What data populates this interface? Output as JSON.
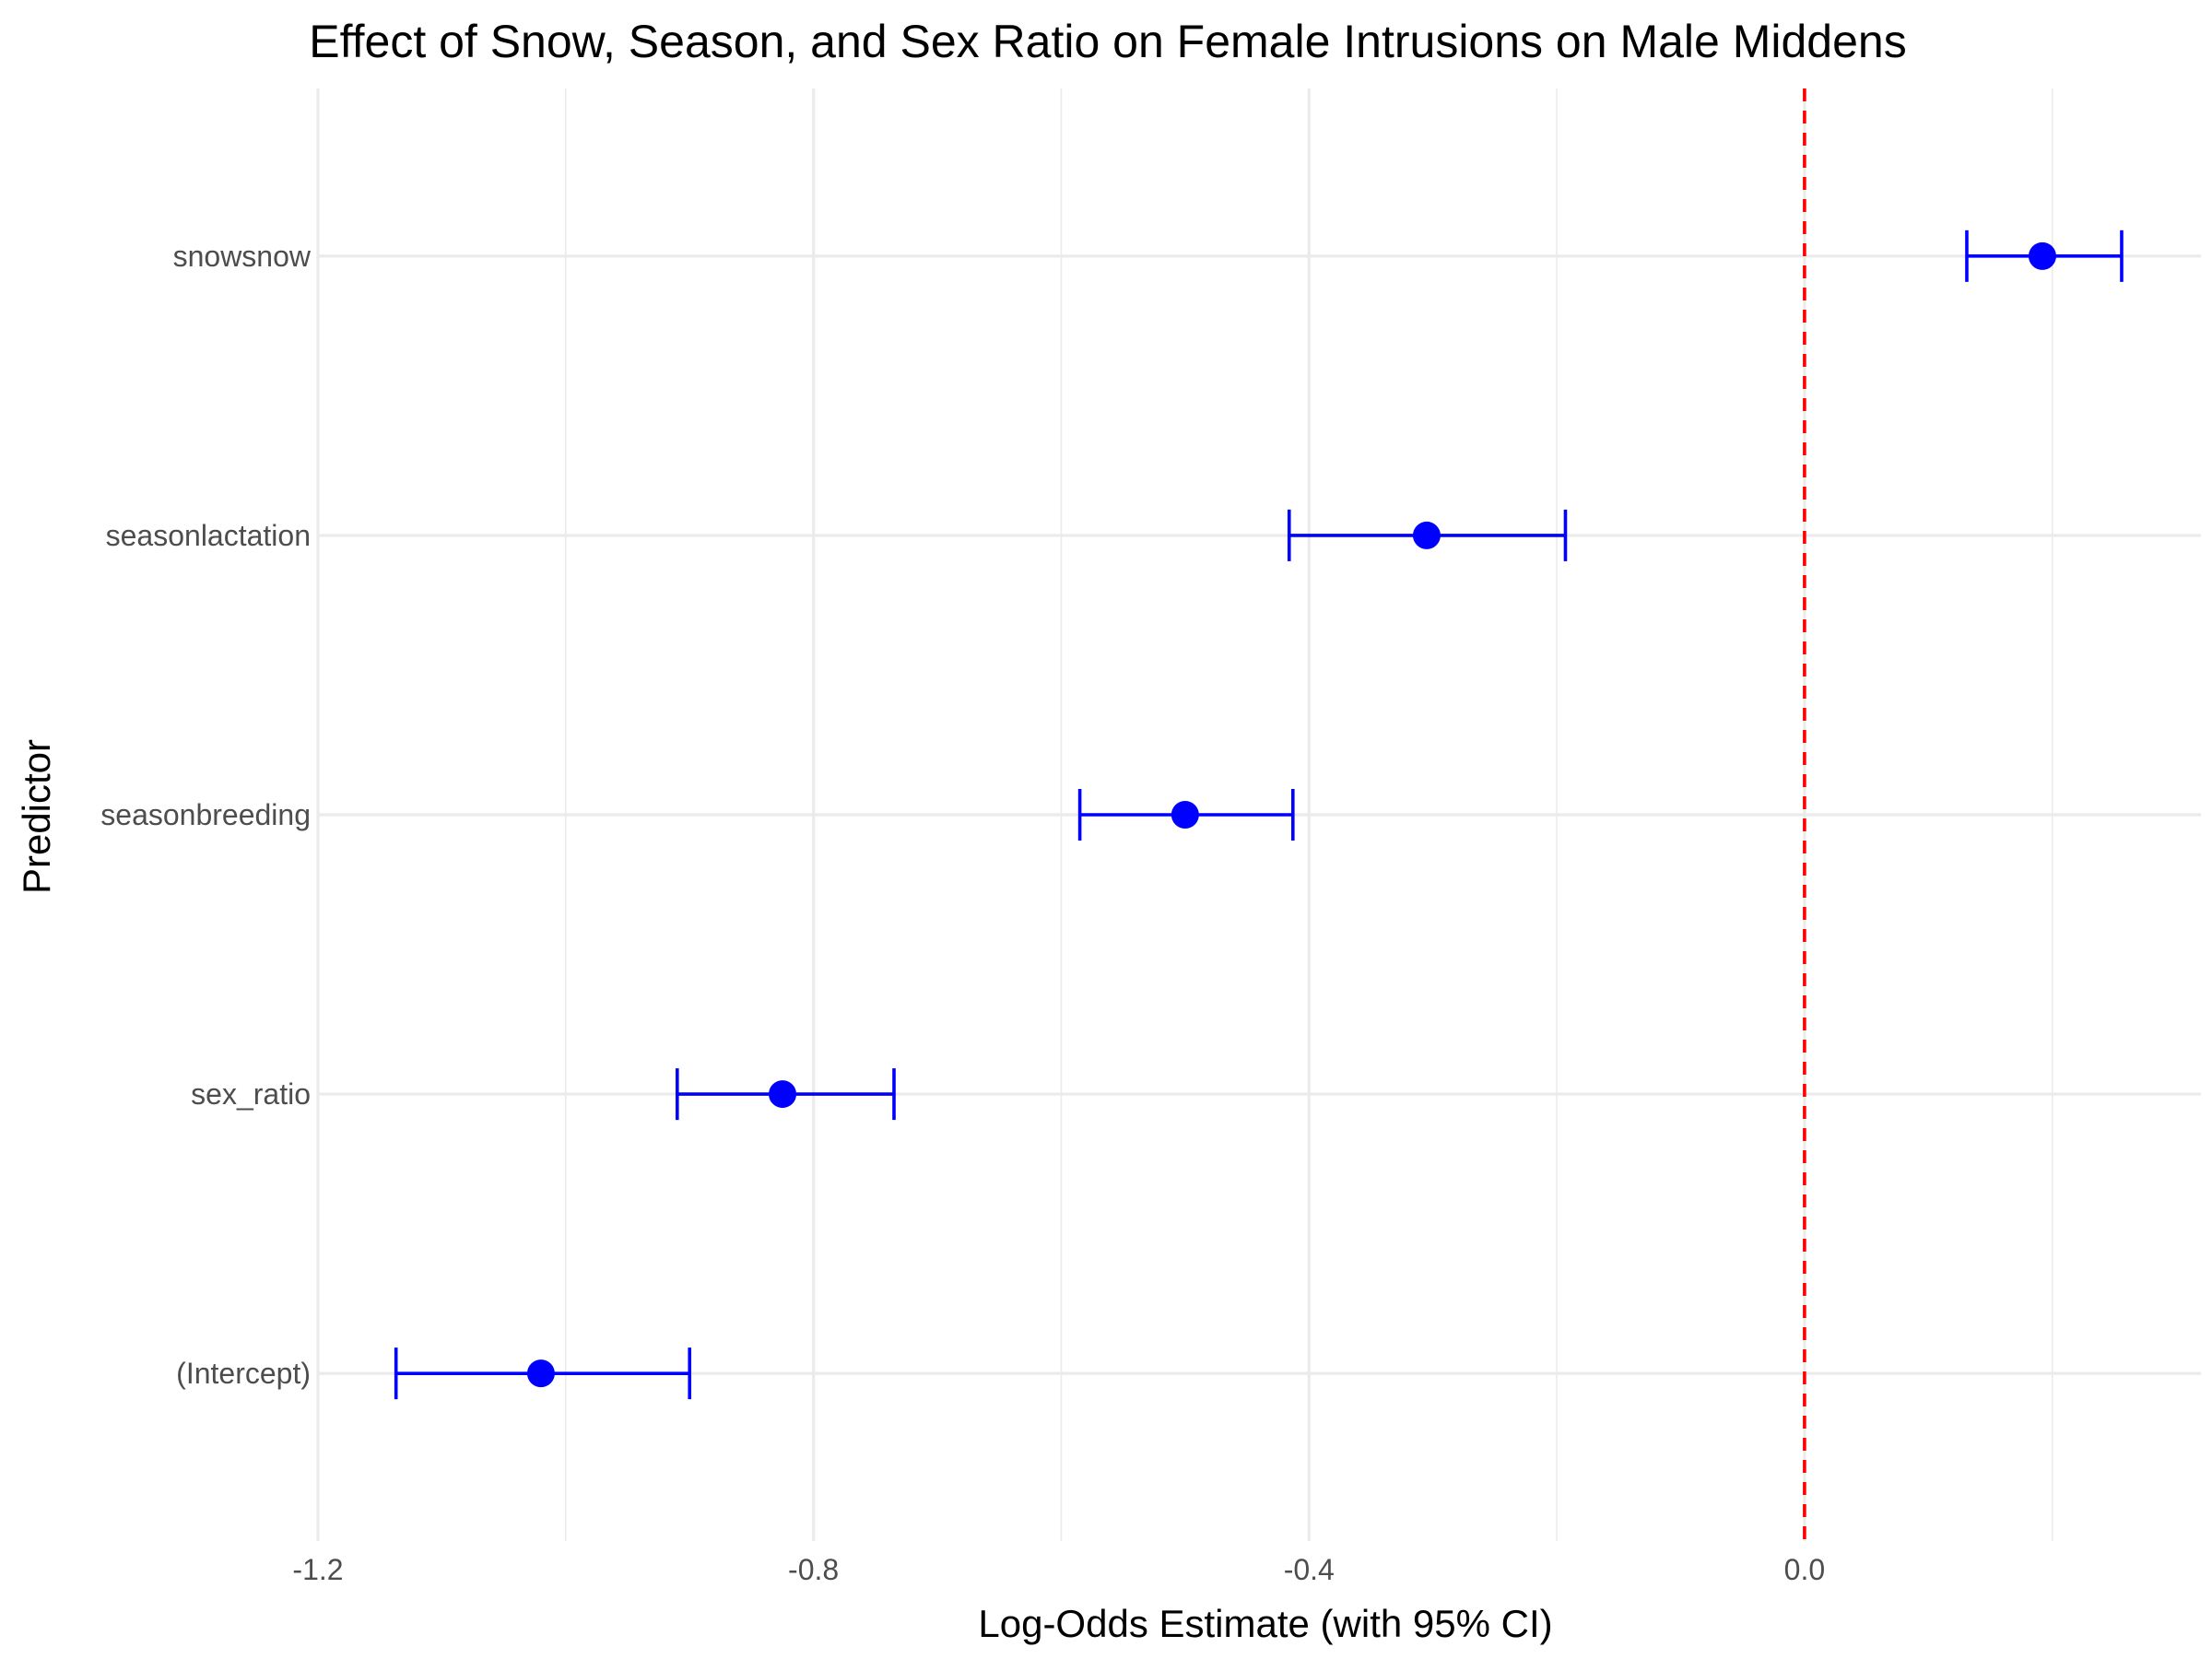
{
  "chart_data": {
    "type": "scatter",
    "subtype": "coefficient-plot-with-error-bars",
    "title": "Effect of Snow, Season, and Sex Ratio on Female Intrusions on Male Middens",
    "xlabel": "Log-Odds Estimate (with 95% CI)",
    "ylabel": "Predictor",
    "xlim": [
      -1.2,
      0.32
    ],
    "x_ticks": [
      -1.2,
      -0.8,
      -0.4,
      0.0
    ],
    "x_tick_labels": [
      "-1.2",
      "-0.8",
      "-0.4",
      "0.0"
    ],
    "categories": [
      "(Intercept)",
      "sex_ratio",
      "seasonbreeding",
      "seasonlactation",
      "snowsnow"
    ],
    "estimates": [
      -1.02,
      -0.825,
      -0.5,
      -0.305,
      0.192
    ],
    "ci_lower": [
      -1.137,
      -0.91,
      -0.585,
      -0.416,
      0.131
    ],
    "ci_upper": [
      -0.9,
      -0.735,
      -0.413,
      -0.193,
      0.256
    ],
    "reference_line": {
      "x": 0.0,
      "style": "dashed",
      "color": "#ff0000"
    },
    "point_color": "#0000ff",
    "errorbar_color": "#0000ff",
    "grid": true,
    "legend": "none"
  }
}
